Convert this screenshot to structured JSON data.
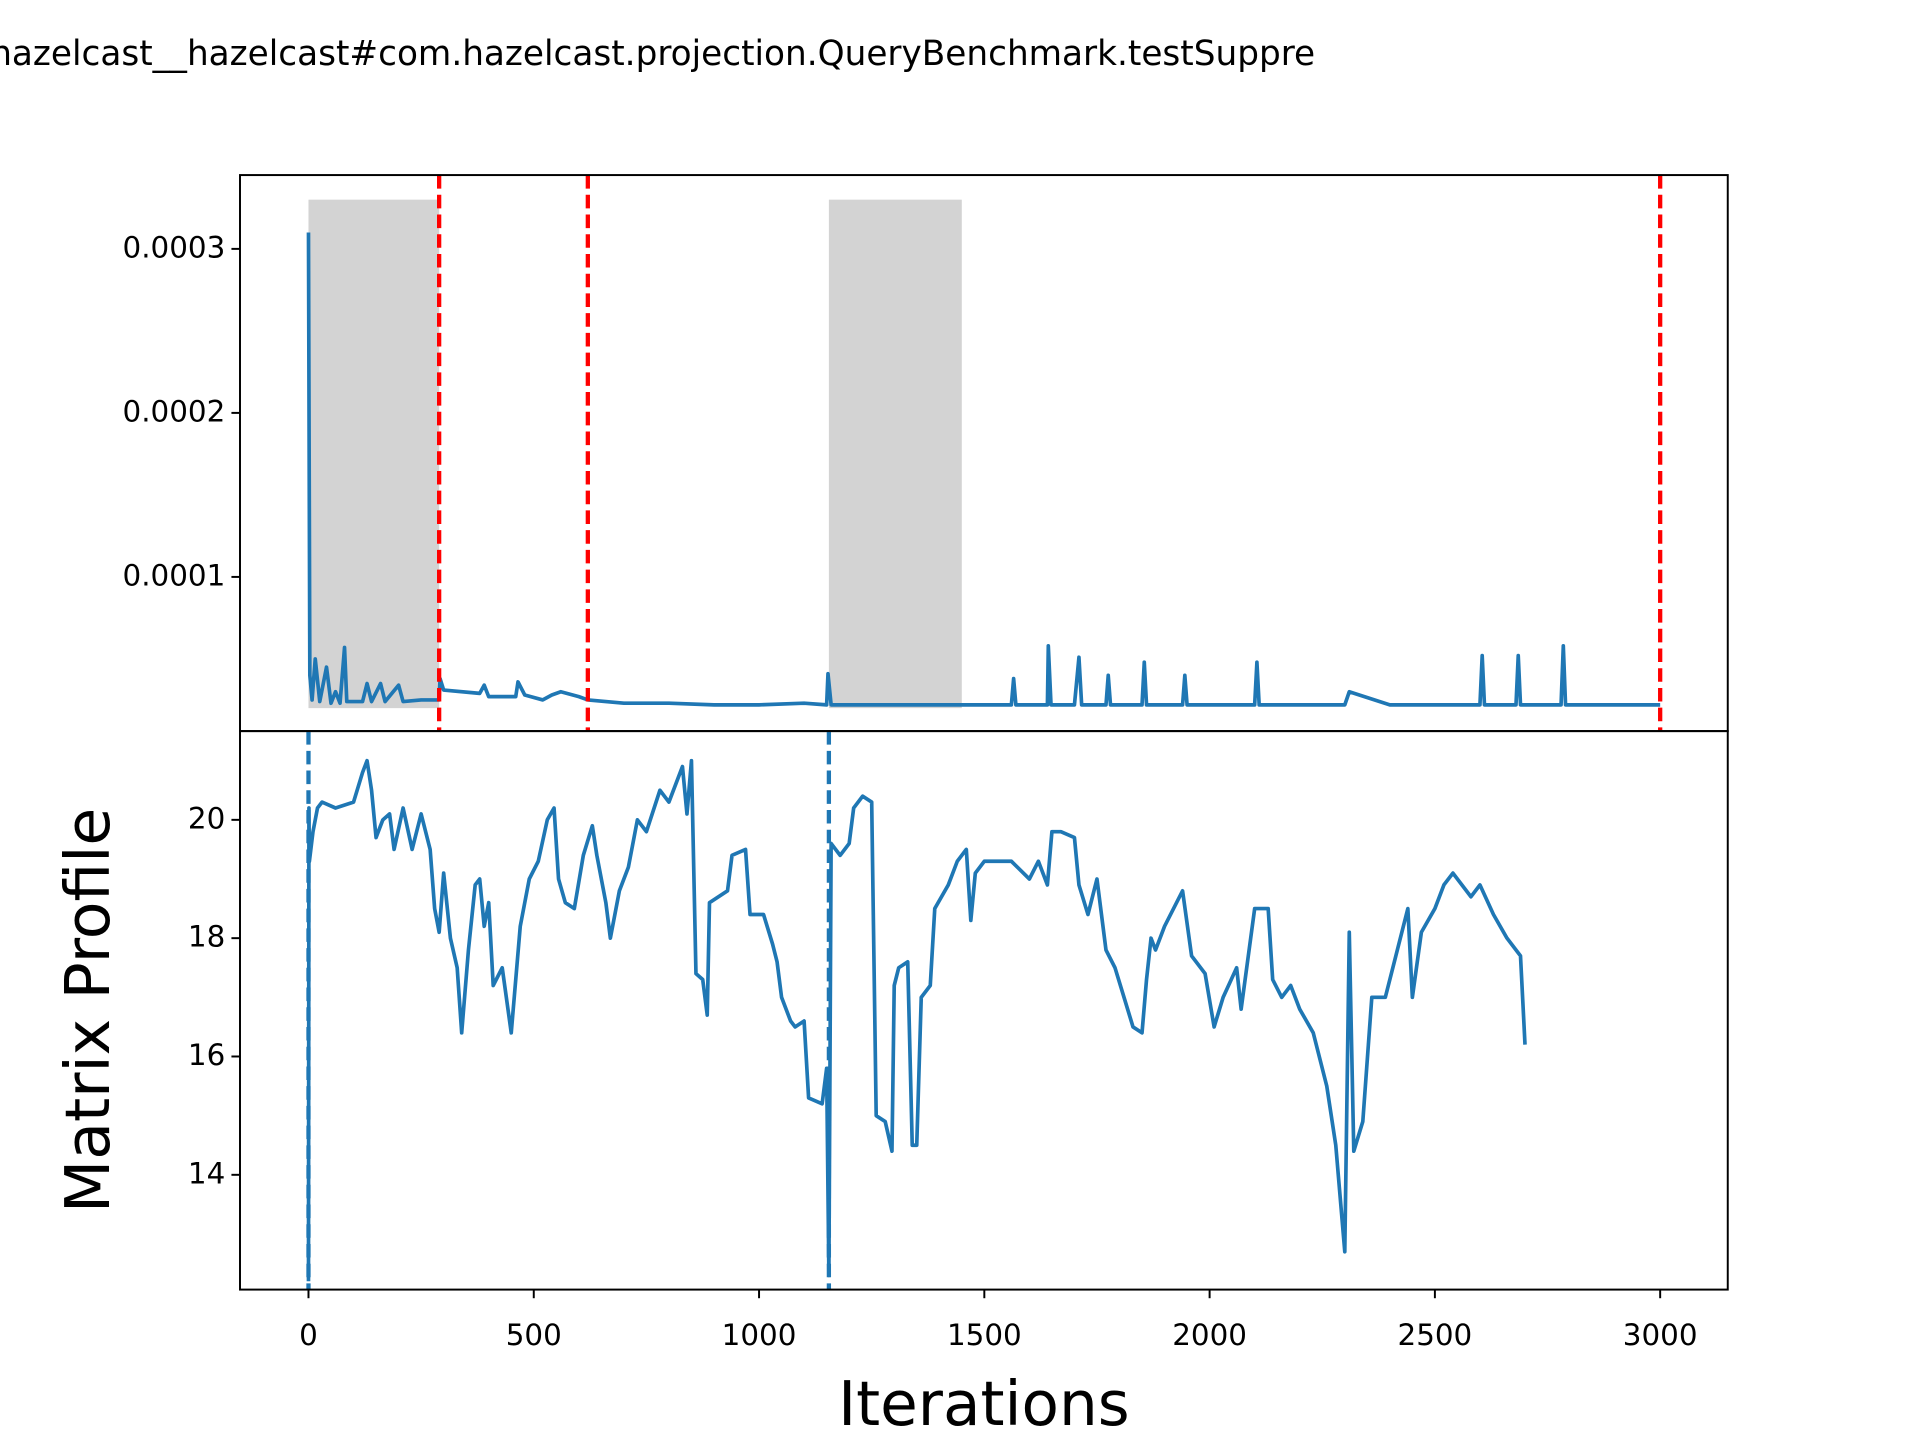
{
  "title": "hazelcast__hazelcast#com.hazelcast.projection.QueryBenchmark.testSuppre",
  "chart_data": [
    {
      "type": "line",
      "color": "#1f77b4",
      "x": [
        0,
        3,
        8,
        15,
        25,
        40,
        50,
        60,
        70,
        80,
        85,
        120,
        130,
        140,
        160,
        170,
        200,
        210,
        250,
        290,
        292,
        300,
        380,
        390,
        400,
        460,
        465,
        480,
        520,
        540,
        560,
        600,
        620,
        700,
        800,
        900,
        1000,
        1100,
        1150,
        1153,
        1160,
        1300,
        1400,
        1500,
        1560,
        1565,
        1570,
        1640,
        1642,
        1648,
        1700,
        1710,
        1716,
        1770,
        1775,
        1780,
        1850,
        1855,
        1860,
        1940,
        1945,
        1950,
        2000,
        2100,
        2105,
        2110,
        2300,
        2310,
        2400,
        2600,
        2605,
        2610,
        2680,
        2685,
        2690,
        2780,
        2785,
        2790,
        2900,
        3000
      ],
      "values": [
        0.00031,
        4e-05,
        2.5e-05,
        5e-05,
        2.4e-05,
        4.5e-05,
        2.3e-05,
        3e-05,
        2.3e-05,
        5.7e-05,
        2.4e-05,
        2.4e-05,
        3.5e-05,
        2.4e-05,
        3.5e-05,
        2.4e-05,
        3.4e-05,
        2.4e-05,
        2.5e-05,
        2.5e-05,
        3.8e-05,
        3.1e-05,
        2.9e-05,
        3.4e-05,
        2.7e-05,
        2.7e-05,
        3.6e-05,
        2.8e-05,
        2.5e-05,
        2.8e-05,
        3e-05,
        2.7e-05,
        2.5e-05,
        2.3e-05,
        2.3e-05,
        2.2e-05,
        2.2e-05,
        2.3e-05,
        2.2e-05,
        4.1e-05,
        2.2e-05,
        2.2e-05,
        2.2e-05,
        2.2e-05,
        2.2e-05,
        3.8e-05,
        2.2e-05,
        2.2e-05,
        5.8e-05,
        2.2e-05,
        2.2e-05,
        5.1e-05,
        2.2e-05,
        2.2e-05,
        4e-05,
        2.2e-05,
        2.2e-05,
        4.8e-05,
        2.2e-05,
        2.2e-05,
        4e-05,
        2.2e-05,
        2.2e-05,
        2.2e-05,
        4.8e-05,
        2.2e-05,
        2.2e-05,
        3e-05,
        2.2e-05,
        2.2e-05,
        5.2e-05,
        2.2e-05,
        2.2e-05,
        5.2e-05,
        2.2e-05,
        2.2e-05,
        5.8e-05,
        2.2e-05,
        2.2e-05,
        2.2e-05
      ],
      "xlim": [
        -152,
        3150
      ],
      "ylim": [
        6e-06,
        0.000345
      ],
      "yticks": [
        0.0001,
        0.0002,
        0.0003
      ],
      "shaded_regions": [
        {
          "x": [
            0,
            290
          ],
          "y": [
            2e-05,
            0.00033
          ]
        },
        {
          "x": [
            1155,
            1450
          ],
          "y": [
            2e-05,
            0.00033
          ]
        }
      ],
      "shade_color": "#d3d3d3",
      "vlines": [
        290,
        620,
        3000
      ],
      "vline_color": "#ff0000"
    },
    {
      "type": "line",
      "color": "#1f77b4",
      "x_label": "Iterations",
      "y_label": "Matrix Profile",
      "x": [
        0,
        1,
        2,
        10,
        20,
        30,
        60,
        100,
        120,
        130,
        140,
        150,
        165,
        180,
        190,
        210,
        230,
        250,
        270,
        280,
        290,
        300,
        315,
        330,
        340,
        355,
        370,
        380,
        390,
        400,
        410,
        430,
        450,
        470,
        490,
        510,
        530,
        545,
        555,
        570,
        590,
        610,
        630,
        640,
        660,
        670,
        690,
        710,
        730,
        750,
        780,
        800,
        830,
        840,
        850,
        860,
        875,
        885,
        890,
        930,
        940,
        970,
        980,
        1010,
        1030,
        1040,
        1050,
        1070,
        1080,
        1100,
        1110,
        1140,
        1150,
        1155,
        1160,
        1180,
        1200,
        1210,
        1230,
        1250,
        1260,
        1280,
        1295,
        1300,
        1310,
        1330,
        1340,
        1350,
        1360,
        1380,
        1390,
        1420,
        1440,
        1460,
        1470,
        1480,
        1500,
        1560,
        1600,
        1620,
        1640,
        1650,
        1670,
        1700,
        1710,
        1730,
        1750,
        1770,
        1790,
        1810,
        1830,
        1850,
        1860,
        1870,
        1880,
        1900,
        1940,
        1960,
        1990,
        2010,
        2030,
        2060,
        2070,
        2100,
        2130,
        2140,
        2160,
        2180,
        2200,
        2230,
        2260,
        2280,
        2300,
        2310,
        2320,
        2340,
        2360,
        2390,
        2420,
        2440,
        2450,
        2470,
        2500,
        2520,
        2540,
        2580,
        2600,
        2630,
        2660,
        2690,
        2700
      ],
      "values": [
        12.2,
        20.2,
        19.3,
        19.8,
        20.2,
        20.3,
        20.2,
        20.3,
        20.8,
        21.0,
        20.5,
        19.7,
        20.0,
        20.1,
        19.5,
        20.2,
        19.5,
        20.1,
        19.5,
        18.5,
        18.1,
        19.1,
        18.0,
        17.5,
        16.4,
        17.8,
        18.9,
        19.0,
        18.2,
        18.6,
        17.2,
        17.5,
        16.4,
        18.2,
        19.0,
        19.3,
        20.0,
        20.2,
        19.0,
        18.6,
        18.5,
        19.4,
        19.9,
        19.4,
        18.6,
        18.0,
        18.8,
        19.2,
        20.0,
        19.8,
        20.5,
        20.3,
        20.9,
        20.1,
        21.0,
        17.4,
        17.3,
        16.7,
        18.6,
        18.8,
        19.4,
        19.5,
        18.4,
        18.4,
        17.9,
        17.6,
        17.0,
        16.6,
        16.5,
        16.6,
        15.3,
        15.2,
        15.8,
        12.3,
        19.6,
        19.4,
        19.6,
        20.2,
        20.4,
        20.3,
        15.0,
        14.9,
        14.4,
        17.2,
        17.5,
        17.6,
        14.5,
        14.5,
        17.0,
        17.2,
        18.5,
        18.9,
        19.3,
        19.5,
        18.3,
        19.1,
        19.3,
        19.3,
        19.0,
        19.3,
        18.9,
        19.8,
        19.8,
        19.7,
        18.9,
        18.4,
        19.0,
        17.8,
        17.5,
        17.0,
        16.5,
        16.4,
        17.3,
        18.0,
        17.8,
        18.2,
        18.8,
        17.7,
        17.4,
        16.5,
        17.0,
        17.5,
        16.8,
        18.5,
        18.5,
        17.3,
        17.0,
        17.2,
        16.8,
        16.4,
        15.5,
        14.5,
        12.7,
        18.1,
        14.4,
        14.9,
        17.0,
        17.0,
        17.9,
        18.5,
        17.0,
        18.1,
        18.5,
        18.9,
        19.1,
        18.7,
        18.9,
        18.4,
        18.0,
        17.7,
        16.2
      ],
      "xlim": [
        -152,
        3150
      ],
      "ylim": [
        12.06,
        21.5
      ],
      "xticks": [
        0,
        500,
        1000,
        1500,
        2000,
        2500,
        3000
      ],
      "yticks": [
        14,
        16,
        18,
        20
      ],
      "vlines": [
        0,
        1155
      ],
      "vline_color": "#1f77b4"
    }
  ]
}
